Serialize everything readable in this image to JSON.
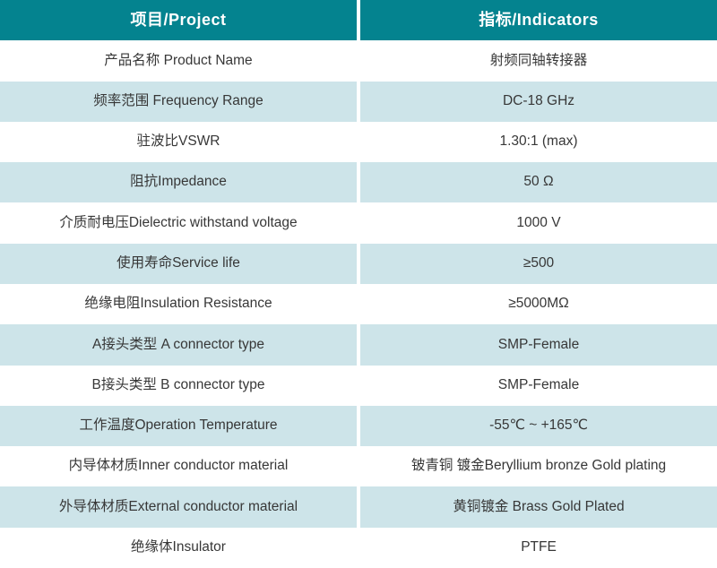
{
  "table": {
    "header": {
      "project": "项目/Project",
      "indicators": "指标/Indicators"
    },
    "rows": [
      {
        "project": "产品名称 Product Name",
        "indicator": "射频同轴转接器"
      },
      {
        "project": "频率范围 Frequency Range",
        "indicator": "DC-18 GHz"
      },
      {
        "project": "驻波比VSWR",
        "indicator": "1.30:1 (max)"
      },
      {
        "project": "阻抗Impedance",
        "indicator": "50 Ω"
      },
      {
        "project": "介质耐电压Dielectric withstand voltage",
        "indicator": "1000 V"
      },
      {
        "project": "使用寿命Service life",
        "indicator": "≥500"
      },
      {
        "project": "绝缘电阻Insulation Resistance",
        "indicator": "≥5000MΩ"
      },
      {
        "project": "A接头类型 A connector type",
        "indicator": "SMP-Female"
      },
      {
        "project": "B接头类型 B connector type",
        "indicator": "SMP-Female"
      },
      {
        "project": "工作温度Operation Temperature",
        "indicator": "-55℃ ~ +165℃"
      },
      {
        "project": "内导体材质Inner conductor material",
        "indicator": "铍青铜 镀金Beryllium bronze Gold plating"
      },
      {
        "project": "外导体材质External conductor material",
        "indicator": "黄铜镀金 Brass Gold Plated"
      },
      {
        "project": "绝缘体Insulator",
        "indicator": "PTFE"
      }
    ]
  },
  "colors": {
    "header_bg": "#04838F",
    "alt_row_bg": "#CDE4E9",
    "row_bg": "#FFFFFF",
    "header_text": "#FFFFFF",
    "body_text": "#373737"
  }
}
